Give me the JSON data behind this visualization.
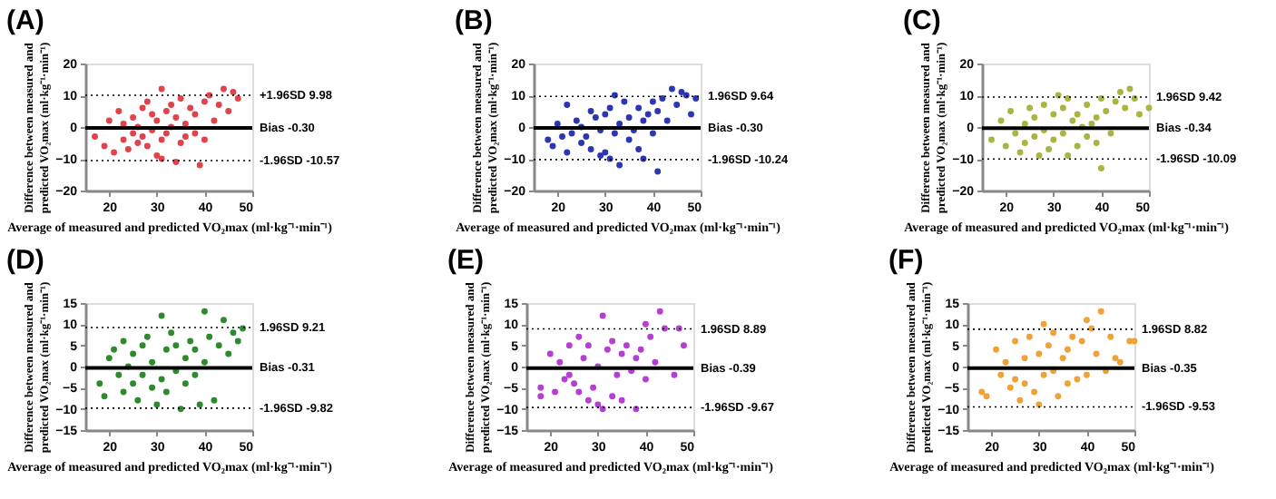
{
  "chart_data": [
    {
      "type": "scatter",
      "title": "(A)",
      "xlabel": "Average of measured and predicted VO₂max (ml·kg⁻¹·min⁻¹)",
      "ylabel": "Difference between measured and\npredicted VO₂max (ml·kg⁻¹·min⁻¹)",
      "xlim": [
        15,
        50
      ],
      "xticks": [
        20,
        30,
        40,
        50
      ],
      "ylim": [
        -20,
        20
      ],
      "yticks": [
        -20,
        -10,
        0,
        10,
        20
      ],
      "grid": false,
      "legend": false,
      "marker": "circle",
      "x": [
        17,
        19,
        20,
        21,
        22,
        23,
        23,
        24,
        25,
        25,
        26,
        26,
        27,
        27,
        28,
        28,
        29,
        29,
        30,
        30,
        31,
        31,
        31,
        32,
        32,
        33,
        33,
        34,
        34,
        35,
        35,
        36,
        36,
        37,
        38,
        38,
        39,
        40,
        40,
        41,
        42,
        43,
        44,
        45,
        46,
        47
      ],
      "series": [
        {
          "color": "#e0434b",
          "values": [
            -3,
            -6,
            2,
            -8,
            5,
            -4,
            1,
            -7,
            -2,
            3,
            -5,
            0,
            6,
            -3,
            8,
            -6,
            -1,
            4,
            -9,
            2,
            12,
            -10,
            -4,
            5,
            -2,
            7,
            0,
            -11,
            3,
            -5,
            9,
            1,
            -3,
            6,
            -2,
            4,
            -12,
            8,
            -4,
            10,
            2,
            7,
            12,
            5,
            11,
            9
          ]
        }
      ],
      "ref_lines": [
        {
          "axis": "y",
          "value": 9.98,
          "label": "+1.96SD 9.98",
          "line_style": "dotted"
        },
        {
          "axis": "y",
          "value": -0.3,
          "label": "Bias -0.30",
          "line_style": "solid"
        },
        {
          "axis": "y",
          "value": -10.57,
          "label": "-1.96SD -10.57",
          "line_style": "dotted"
        }
      ]
    },
    {
      "type": "scatter",
      "title": "(B)",
      "xlabel": "Average of measured and predicted VO₂max (ml·kg⁻¹·min⁻¹)",
      "ylabel": "Difference between measured and\npredicted VO₂max (ml·kg⁻¹·min⁻¹)",
      "xlim": [
        15,
        50
      ],
      "xticks": [
        20,
        30,
        40,
        50
      ],
      "ylim": [
        -20,
        20
      ],
      "yticks": [
        -20,
        -10,
        0,
        10,
        20
      ],
      "grid": false,
      "legend": false,
      "marker": "circle",
      "x": [
        18,
        19,
        20,
        21,
        22,
        22,
        23,
        24,
        25,
        25,
        26,
        27,
        27,
        28,
        29,
        29,
        30,
        30,
        31,
        31,
        32,
        32,
        33,
        33,
        34,
        35,
        35,
        36,
        37,
        37,
        38,
        38,
        39,
        40,
        40,
        41,
        41,
        42,
        43,
        44,
        45,
        46,
        47,
        48,
        49
      ],
      "series": [
        {
          "color": "#2b36b5",
          "values": [
            -4,
            -6,
            1,
            -3,
            7,
            -8,
            -2,
            2,
            -5,
            0,
            -3,
            5,
            -7,
            3,
            -9,
            -1,
            -8,
            4,
            6,
            -10,
            -2,
            10,
            -12,
            1,
            8,
            -4,
            3,
            -1,
            6,
            -7,
            2,
            -10,
            4,
            8,
            -2,
            5,
            -14,
            9,
            2,
            12,
            7,
            11,
            10,
            4,
            9
          ]
        }
      ],
      "ref_lines": [
        {
          "axis": "y",
          "value": 9.64,
          "label": "1.96SD 9.64",
          "line_style": "dotted"
        },
        {
          "axis": "y",
          "value": -0.3,
          "label": "Bias -0.30",
          "line_style": "solid"
        },
        {
          "axis": "y",
          "value": -10.24,
          "label": "-1.96SD -10.24",
          "line_style": "dotted"
        }
      ]
    },
    {
      "type": "scatter",
      "title": "(C)",
      "xlabel": "Average of measured and predicted VO₂max (ml·kg⁻¹·min⁻¹)",
      "ylabel": "Difference between measured and\npredicted VO₂max (ml·kg⁻¹·min⁻¹)",
      "xlim": [
        15,
        50
      ],
      "xticks": [
        20,
        30,
        40,
        50
      ],
      "ylim": [
        -20,
        20
      ],
      "yticks": [
        -20,
        -10,
        0,
        10,
        20
      ],
      "grid": false,
      "legend": false,
      "marker": "circle",
      "x": [
        17,
        19,
        20,
        21,
        22,
        23,
        24,
        24,
        25,
        26,
        26,
        27,
        28,
        28,
        29,
        30,
        30,
        31,
        32,
        32,
        33,
        33,
        34,
        35,
        35,
        36,
        37,
        37,
        38,
        39,
        39,
        40,
        40,
        41,
        42,
        43,
        44,
        45,
        46,
        47,
        48,
        50
      ],
      "series": [
        {
          "color": "#a9b441",
          "values": [
            -4,
            2,
            -6,
            5,
            -2,
            -8,
            1,
            -5,
            6,
            -3,
            3,
            -9,
            7,
            -1,
            -7,
            4,
            -4,
            10,
            -2,
            6,
            9,
            -9,
            2,
            -6,
            4,
            0,
            -3,
            7,
            1,
            -5,
            3,
            -13,
            9,
            5,
            -2,
            8,
            11,
            6,
            12,
            9,
            4,
            6
          ]
        }
      ],
      "ref_lines": [
        {
          "axis": "y",
          "value": 9.42,
          "label": "1.96SD 9.42",
          "line_style": "dotted"
        },
        {
          "axis": "y",
          "value": -0.34,
          "label": "Bias -0.34",
          "line_style": "solid"
        },
        {
          "axis": "y",
          "value": -10.09,
          "label": "-1.96SD -10.09",
          "line_style": "dotted"
        }
      ]
    },
    {
      "type": "scatter",
      "title": "(D)",
      "xlabel": "Average of measured and predicted VO₂max (ml·kg⁻¹·min⁻¹)",
      "ylabel": "Difference between measured and\npredicted VO₂max (ml·kg⁻¹·min⁻¹)",
      "xlim": [
        15,
        50
      ],
      "xticks": [
        20,
        30,
        40,
        50
      ],
      "ylim": [
        -15,
        15
      ],
      "yticks": [
        -15,
        -10,
        -5,
        0,
        5,
        10,
        15
      ],
      "grid": false,
      "legend": false,
      "marker": "circle",
      "x": [
        18,
        19,
        20,
        21,
        22,
        23,
        23,
        24,
        25,
        25,
        26,
        27,
        27,
        28,
        29,
        29,
        30,
        31,
        31,
        32,
        32,
        33,
        34,
        34,
        35,
        36,
        36,
        37,
        38,
        38,
        39,
        40,
        40,
        41,
        42,
        43,
        44,
        45,
        46,
        47,
        48
      ],
      "series": [
        {
          "color": "#2f8a2f",
          "values": [
            -4,
            -7,
            2,
            4,
            -2,
            -6,
            6,
            0,
            -4,
            3,
            -8,
            5,
            -2,
            7,
            -5,
            1,
            -9,
            12,
            -3,
            4,
            -6,
            8,
            -1,
            5,
            -10,
            2,
            -4,
            6,
            -2,
            4,
            -9,
            13,
            1,
            7,
            -8,
            5,
            11,
            3,
            8,
            6,
            9
          ]
        }
      ],
      "ref_lines": [
        {
          "axis": "y",
          "value": 9.21,
          "label": "1.96SD 9.21",
          "line_style": "dotted"
        },
        {
          "axis": "y",
          "value": -0.31,
          "label": "Bias -0.31",
          "line_style": "solid"
        },
        {
          "axis": "y",
          "value": -9.82,
          "label": "-1.96SD -9.82",
          "line_style": "dotted"
        }
      ]
    },
    {
      "type": "scatter",
      "title": "(E)",
      "xlabel": "Average of measured and predicted VO₂max (ml·kg⁻¹·min⁻¹)",
      "ylabel": "Difference between measured and\npredicted VO₂max (ml·kg⁻¹·min⁻¹)",
      "xlim": [
        15,
        50
      ],
      "xticks": [
        20,
        30,
        40,
        50
      ],
      "ylim": [
        -15,
        15
      ],
      "yticks": [
        -15,
        -10,
        -5,
        0,
        5,
        10,
        15
      ],
      "grid": false,
      "legend": false,
      "marker": "circle",
      "x": [
        18,
        18,
        20,
        21,
        22,
        23,
        24,
        24,
        25,
        26,
        26,
        27,
        28,
        28,
        29,
        30,
        30,
        31,
        31,
        32,
        33,
        33,
        34,
        35,
        35,
        36,
        37,
        38,
        38,
        39,
        40,
        40,
        41,
        42,
        43,
        44,
        46,
        47,
        48
      ],
      "series": [
        {
          "color": "#b43fd2",
          "values": [
            -5,
            -7,
            3,
            -6,
            1,
            -3,
            5,
            -2,
            -4,
            7,
            -6,
            2,
            -8,
            5,
            -5,
            0,
            -9,
            12,
            -10,
            4,
            -7,
            6,
            -2,
            3,
            -8,
            5,
            -1,
            2,
            -10,
            4,
            10,
            -3,
            7,
            1,
            13,
            9,
            -2,
            9,
            5
          ]
        }
      ],
      "ref_lines": [
        {
          "axis": "y",
          "value": 8.89,
          "label": "1.96SD 8.89",
          "line_style": "dotted"
        },
        {
          "axis": "y",
          "value": -0.39,
          "label": "Bias -0.39",
          "line_style": "solid"
        },
        {
          "axis": "y",
          "value": -9.67,
          "label": "-1.96SD -9.67",
          "line_style": "dotted"
        }
      ]
    },
    {
      "type": "scatter",
      "title": "(F)",
      "xlabel": "Average of measured and predicted VO₂max (ml·kg⁻¹·min⁻¹)",
      "ylabel": "Difference between measured and\npredicted VO₂max (ml·kg⁻¹·min⁻¹)",
      "xlim": [
        15,
        50
      ],
      "xticks": [
        20,
        30,
        40,
        50
      ],
      "ylim": [
        -15,
        15
      ],
      "yticks": [
        -15,
        -10,
        -5,
        0,
        5,
        10,
        15
      ],
      "grid": false,
      "legend": false,
      "marker": "circle",
      "x": [
        18,
        19,
        21,
        22,
        23,
        24,
        25,
        25,
        26,
        27,
        27,
        28,
        29,
        30,
        30,
        31,
        31,
        32,
        33,
        33,
        34,
        35,
        36,
        36,
        37,
        38,
        39,
        40,
        40,
        41,
        42,
        43,
        44,
        45,
        46,
        47,
        49,
        50
      ],
      "series": [
        {
          "color": "#f0a23a",
          "values": [
            -6,
            -7,
            4,
            -2,
            1,
            -5,
            -3,
            6,
            -8,
            2,
            -4,
            7,
            -6,
            -9,
            3,
            10,
            -2,
            5,
            -1,
            8,
            -7,
            2,
            -4,
            4,
            7,
            -3,
            6,
            11,
            -2,
            9,
            3,
            13,
            -1,
            7,
            2,
            1,
            6,
            6
          ]
        }
      ],
      "ref_lines": [
        {
          "axis": "y",
          "value": 8.82,
          "label": "1.96SD 8.82",
          "line_style": "dotted"
        },
        {
          "axis": "y",
          "value": -0.35,
          "label": "Bias -0.35",
          "line_style": "solid"
        },
        {
          "axis": "y",
          "value": -9.53,
          "label": "-1.96SD -9.53",
          "line_style": "dotted"
        }
      ]
    }
  ]
}
